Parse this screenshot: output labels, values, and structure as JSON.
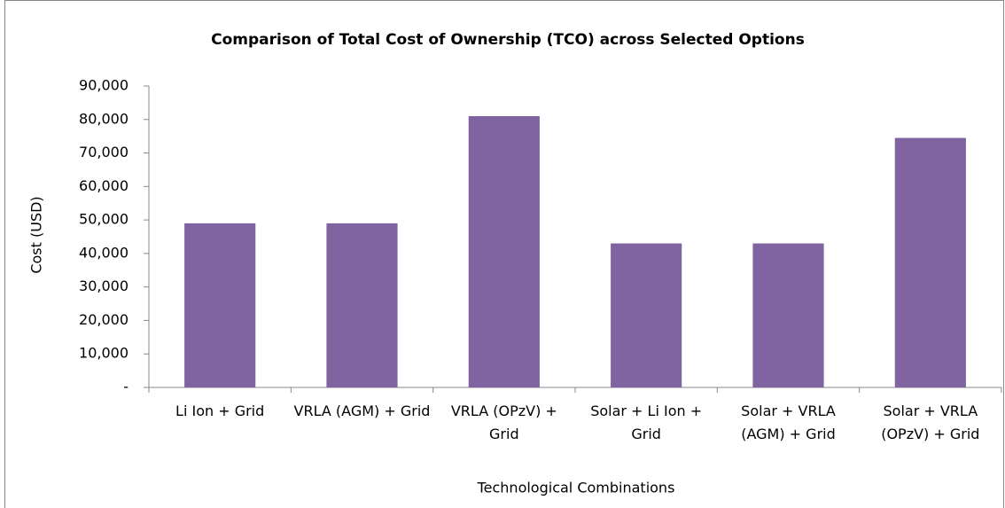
{
  "chart_data": {
    "type": "bar",
    "title": "Comparison of Total Cost of Ownership (TCO) across Selected Options",
    "x_label": "Technological Combinations",
    "y_label": "Cost  (USD)",
    "categories": [
      "Li Ion + Grid",
      "VRLA (AGM) + Grid",
      "VRLA (OPzV) + Grid",
      "Solar + Li Ion + Grid",
      "Solar + VRLA (AGM) + Grid",
      "Solar + VRLA (OPzV) + Grid"
    ],
    "values": [
      49000,
      49000,
      81000,
      43000,
      43000,
      74500
    ],
    "color": "#8064a2",
    "ylim": [
      0,
      90000
    ],
    "yticks": [
      {
        "value": 0,
        "label": "-"
      },
      {
        "value": 10000,
        "label": "10,000"
      },
      {
        "value": 20000,
        "label": "20,000"
      },
      {
        "value": 30000,
        "label": "30,000"
      },
      {
        "value": 40000,
        "label": "40,000"
      },
      {
        "value": 50000,
        "label": "50,000"
      },
      {
        "value": 60000,
        "label": "60,000"
      },
      {
        "value": 70000,
        "label": "70,000"
      },
      {
        "value": 80000,
        "label": "80,000"
      },
      {
        "value": 90000,
        "label": "90,000"
      }
    ],
    "grid": false
  }
}
